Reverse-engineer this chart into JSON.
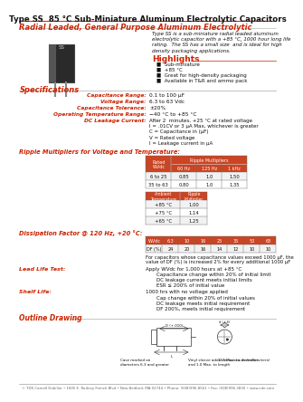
{
  "title_type": "Type SS",
  "title_rest": "  85 °C Sub-Miniature Aluminum Electrolytic Capacitors",
  "subtitle": "Radial Leaded, General Purpose Aluminum Electrolytic",
  "description_lines": [
    "Type SS is a sub-miniature radial leaded aluminum",
    "electrolytic capacitor with a +85 °C, 1000 hour long life",
    "rating.  The SS has a small size  and is ideal for high",
    "density packaging applications."
  ],
  "highlights_title": "Highlights",
  "highlights": [
    "Sub-miniature",
    "+85 °C",
    "Great for high-density packaging",
    "Available in T&R and ammo pack"
  ],
  "specs_title": "Specifications",
  "spec_labels": [
    "Capacitance Range:",
    "Voltage Range:",
    "Capacitance Tolerance:",
    "Operating Temperature Range:",
    "DC Leakage Current:"
  ],
  "spec_values": [
    "0.1 to 100 μF",
    "6.3 to 63 Vdc",
    "±20%",
    "−40 °C to +85 °C",
    ""
  ],
  "dc_leakage_lines": [
    "After 2  minutes, +25 °C at rated voltage",
    "I = .01CV or 3 μA Max, whichever is greater",
    "C = Capacitance in (μF)",
    "V = Rated voltage",
    "I = Leakage current in μA"
  ],
  "ripple_title": "Ripple Multipliers for Voltage and Temperature:",
  "volt_table_headers": [
    "Rated\nWVdc",
    "60 Hz",
    "125 Hz",
    "1 kHz"
  ],
  "volt_table_ripple_span": "Ripple Multipliers",
  "volt_table_rows": [
    [
      "6 to 25",
      "0.85",
      "1.0",
      "1.50"
    ],
    [
      "35 to 63",
      "0.80",
      "1.0",
      "1.35"
    ]
  ],
  "temp_table_headers": [
    "Ambient\nTemperature",
    "Ripple\nMultiplier"
  ],
  "temp_table_rows": [
    [
      "+85 °C",
      "1.00"
    ],
    [
      "+75 °C",
      "1.14"
    ],
    [
      "+65 °C",
      "1.25"
    ]
  ],
  "diss_title": "Dissipation Factor @ 120 Hz, +20 °C:",
  "diss_headers": [
    "WVdc",
    "6.3",
    "10",
    "16",
    "25",
    "35",
    "50",
    "63"
  ],
  "diss_row": [
    "DF (%)",
    "24",
    "20",
    "16",
    "14",
    "12",
    "10",
    "10"
  ],
  "diss_note_lines": [
    "For capacitors whose capacitance values exceed 1000 μF, the",
    "value of DF (%) is increased 2% for every additional 1000 μF"
  ],
  "lead_life_title": "Lead Life Test:",
  "lead_life_lines": [
    "Apply WVdc for 1,000 hours at +85 °C",
    "Capacitance change within 20% of initial limit",
    "DC leakage current meets initial limits",
    "ESR ≤ 200% of initial value"
  ],
  "shelf_life_title": "Shelf Life:",
  "shelf_life_lines": [
    "1000 hrs with no voltage applied",
    "Cap change within 20% of initial values",
    "DC leakage meets initial requirement",
    "DF 200%, meets initial requirement"
  ],
  "outline_title": "Outline Drawing",
  "footer": "© TDK Cornell Dubilier • 1605 E. Rodney French Blvd • New Bedford, MA 02744 • Phone: (508)996-8561 • Fax: (508)996-3830 • www.cde.com",
  "red": "#cc2200",
  "dark": "#111111",
  "gray": "#666666",
  "table_hdr_bg": "#cc4422",
  "table_row_bg": "#f2f2f2",
  "white": "#ffffff"
}
